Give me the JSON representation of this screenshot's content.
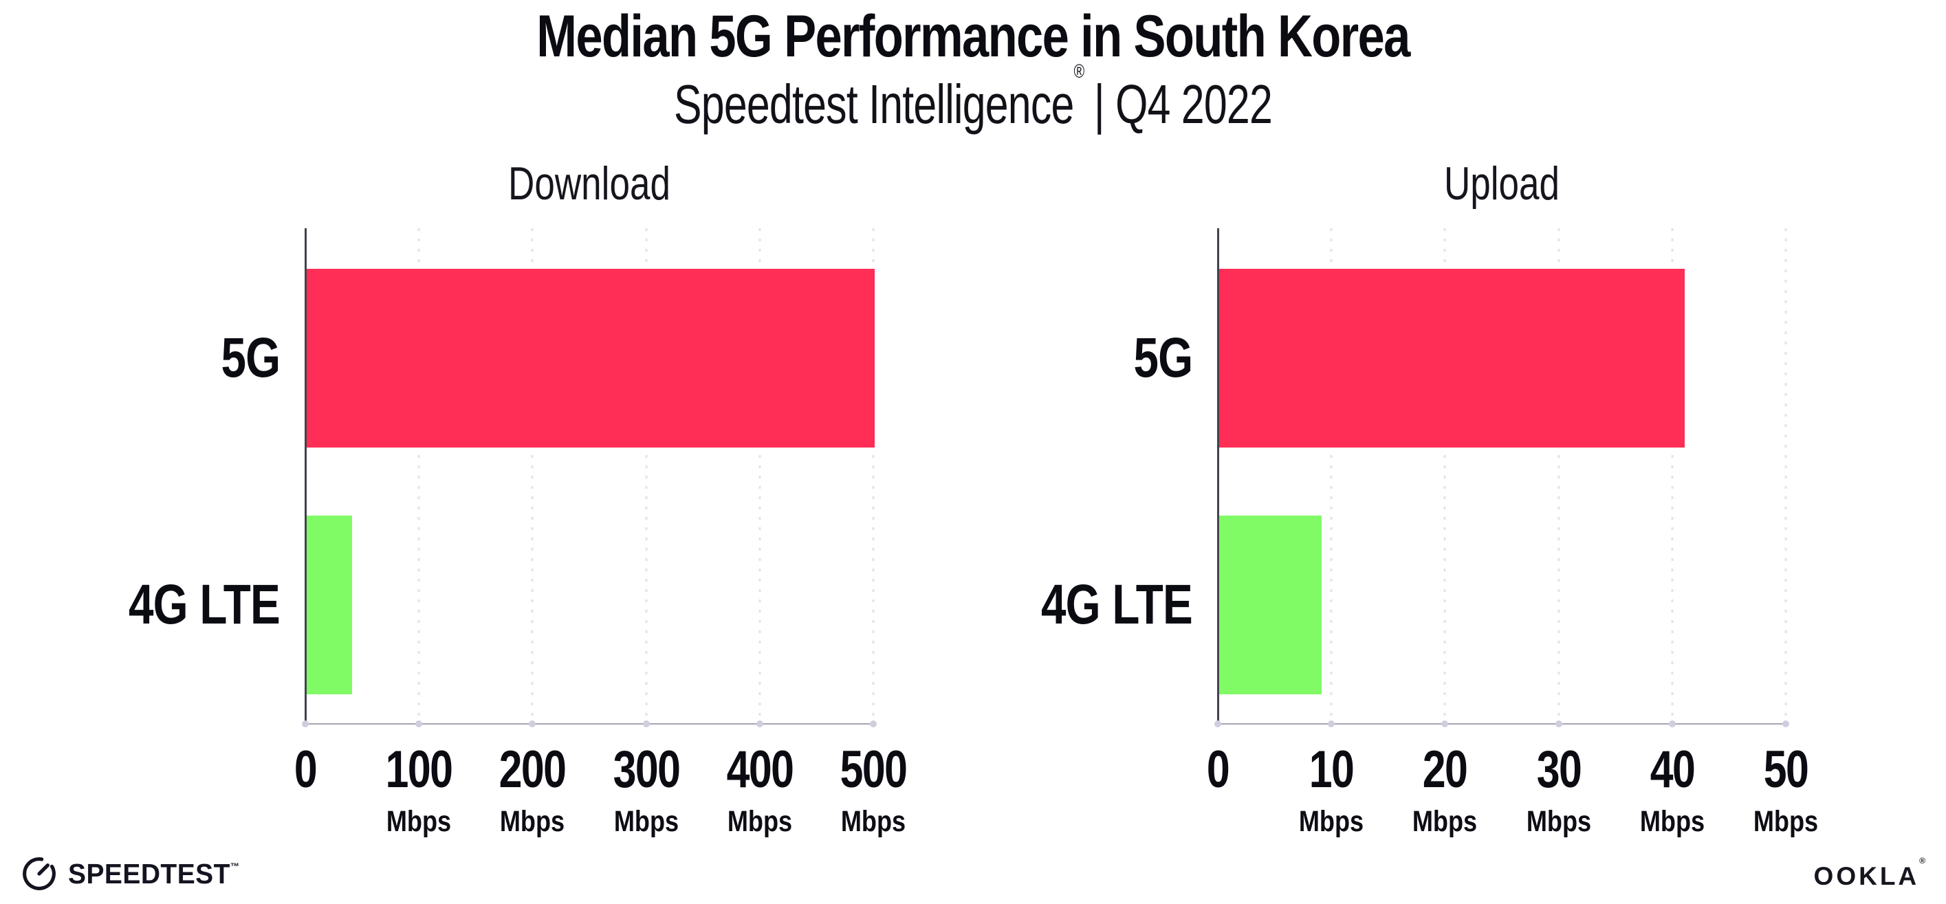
{
  "header": {
    "title": "Median 5G Performance in South Korea",
    "subtitle_name": "Speedtest Intelligence",
    "subtitle_reg": "®",
    "subtitle_rest": "| Q4 2022"
  },
  "chart_data": [
    {
      "type": "bar",
      "orientation": "horizontal",
      "title": "Download",
      "categories": [
        "5G",
        "4G LTE"
      ],
      "values": [
        500,
        40
      ],
      "unit": "Mbps",
      "xlabel": "",
      "ylabel": "",
      "xlim": [
        0,
        500
      ],
      "xticks": [
        0,
        100,
        200,
        300,
        400,
        500
      ],
      "colors": [
        "#FE2E56",
        "#80FB66"
      ],
      "grid": "dotted-vertical-gridlines",
      "legend": "none"
    },
    {
      "type": "bar",
      "orientation": "horizontal",
      "title": "Upload",
      "categories": [
        "5G",
        "4G LTE"
      ],
      "values": [
        41,
        9
      ],
      "unit": "Mbps",
      "xlabel": "",
      "ylabel": "",
      "xlim": [
        0,
        50
      ],
      "xticks": [
        0,
        10,
        20,
        30,
        40,
        50
      ],
      "colors": [
        "#FE2E56",
        "#80FB66"
      ],
      "grid": "dotted-vertical-gridlines",
      "legend": "none"
    }
  ],
  "footer": {
    "speedtest_label": "SPEEDTEST",
    "speedtest_mark": "™",
    "ookla_label": "OOKLA",
    "ookla_mark": "®"
  }
}
